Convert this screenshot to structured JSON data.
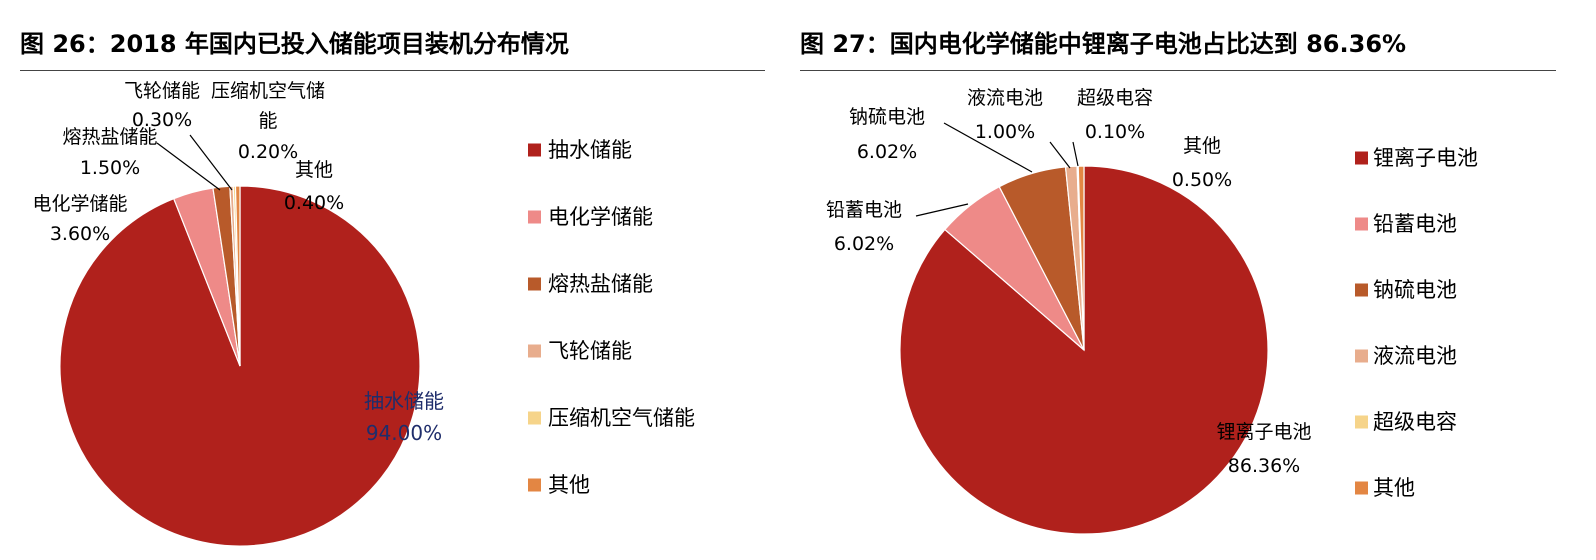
{
  "charts": [
    {
      "title": "图 26：2018 年国内已投入储能项目装机分布情况",
      "chart_data": {
        "type": "pie",
        "categories": [
          "抽水储能",
          "电化学储能",
          "熔热盐储能",
          "飞轮储能",
          "压缩机空气储能",
          "其他"
        ],
        "values": [
          94.0,
          3.6,
          1.5,
          0.3,
          0.2,
          0.4
        ],
        "value_labels": [
          "94.00%",
          "3.60%",
          "1.50%",
          "0.30%",
          "0.20%",
          "0.40%"
        ],
        "colors": [
          "#b0211c",
          "#ee8a88",
          "#b85a2a",
          "#e8ad8d",
          "#f6d48a",
          "#e38643"
        ],
        "legend": "right",
        "start": "12 o'clock, clockwise"
      }
    },
    {
      "title": "图 27：国内电化学储能中锂离子电池占比达到 86.36%",
      "chart_data": {
        "type": "pie",
        "categories": [
          "锂离子电池",
          "铅蓄电池",
          "钠硫电池",
          "液流电池",
          "超级电容",
          "其他"
        ],
        "values": [
          86.36,
          6.02,
          6.02,
          1.0,
          0.1,
          0.5
        ],
        "value_labels": [
          "86.36%",
          "6.02%",
          "6.02%",
          "1.00%",
          "0.10%",
          "0.50%"
        ],
        "colors": [
          "#b0211c",
          "#ee8a88",
          "#b85a2a",
          "#e8ad8d",
          "#f6d48a",
          "#e38643"
        ],
        "legend": "right",
        "start": "12 o'clock, clockwise"
      }
    }
  ]
}
